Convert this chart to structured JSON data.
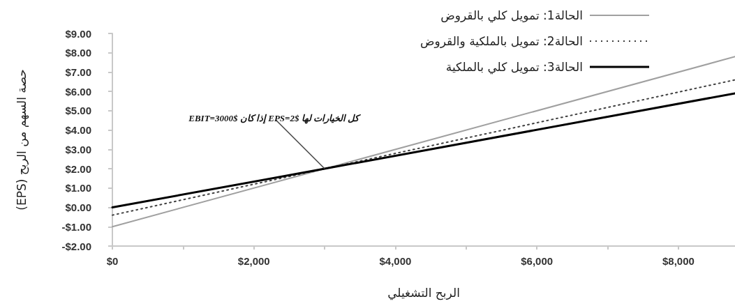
{
  "chart_data": {
    "type": "line",
    "xlabel": "الربح التشغيلي",
    "ylabel": "حصة السهم من الربح (EPS)",
    "x": [
      0,
      3000,
      8800
    ],
    "series": [
      {
        "name": "الحالة1: تمويل كلي بالقروض",
        "color": "#a0a0a0",
        "values": [
          -1,
          2,
          7.8
        ],
        "line_style": "solid"
      },
      {
        "name": "الحالة2: تمويل بالملكية والقروض",
        "color": "#404040",
        "values": [
          -0.4,
          2,
          6.6
        ],
        "line_style": "dotted"
      },
      {
        "name": "الحالة3: تمويل كلي بالملكية",
        "color": "#000000",
        "values": [
          0,
          2,
          5.9
        ],
        "line_style": "solid"
      }
    ],
    "xlim": [
      0,
      8800
    ],
    "xticks": [
      {
        "value": 0,
        "label": "$0"
      },
      {
        "value": 1000,
        "label": null
      },
      {
        "value": 2000,
        "label": "$2,000"
      },
      {
        "value": 3000,
        "label": null
      },
      {
        "value": 4000,
        "label": "$4,000"
      },
      {
        "value": 5000,
        "label": null
      },
      {
        "value": 6000,
        "label": "$6,000"
      },
      {
        "value": 7000,
        "label": null
      },
      {
        "value": 8000,
        "label": "$8,000"
      }
    ],
    "ylim": [
      -2,
      9
    ],
    "yticks": [
      {
        "value": -2,
        "label": "-$2.00"
      },
      {
        "value": -1,
        "label": "-$1.00"
      },
      {
        "value": 0,
        "label": "$0.00"
      },
      {
        "value": 1,
        "label": "$1.00"
      },
      {
        "value": 2,
        "label": "$2.00"
      },
      {
        "value": 3,
        "label": "$3.00"
      },
      {
        "value": 4,
        "label": "$4.00"
      },
      {
        "value": 5,
        "label": "$5.00"
      },
      {
        "value": 6,
        "label": "$6.00"
      },
      {
        "value": 7,
        "label": "$7.00"
      },
      {
        "value": 8,
        "label": "$8.00"
      },
      {
        "value": 9,
        "label": "$9.00"
      }
    ],
    "annotations": [
      {
        "text": "كل الخيارات لها EPS=2$ إذا كان EBIT=3000$",
        "x": 3000,
        "y": 2
      }
    ],
    "grid": false,
    "legend": "top right",
    "marker": "none"
  }
}
